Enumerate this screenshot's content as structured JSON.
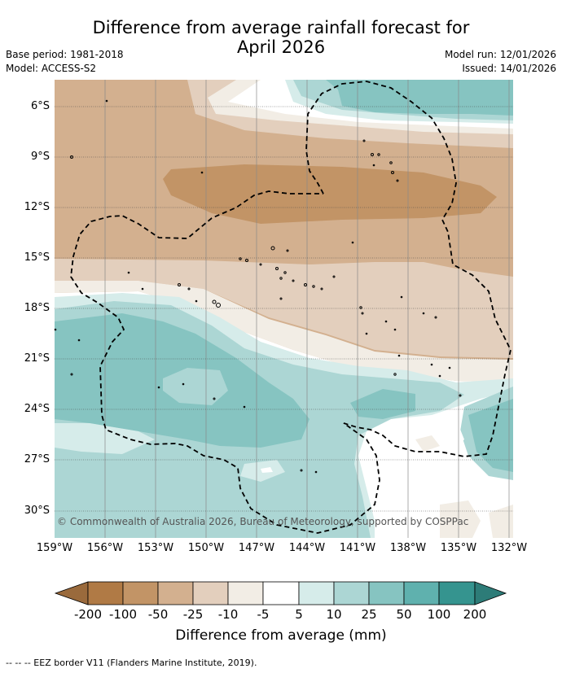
{
  "header": {
    "title_line1": "Difference from average rainfall forecast for",
    "title_line2": "April 2026",
    "base_period": "Base period: 1981-2018",
    "model": "Model: ACCESS-S2",
    "model_run": "Model run: 12/01/2026",
    "issued": "Issued: 14/01/2026"
  },
  "map": {
    "lat_labels": [
      "6°S",
      "9°S",
      "12°S",
      "15°S",
      "18°S",
      "21°S",
      "24°S",
      "27°S",
      "30°S"
    ],
    "lon_labels": [
      "159°W",
      "156°W",
      "153°W",
      "150°W",
      "147°W",
      "144°W",
      "141°W",
      "138°W",
      "135°W",
      "132°W"
    ],
    "copyright": "© Commonwealth of Australia 2026, Bureau of Meteorology, supported by COSPPac",
    "region": "French Polynesia EEZ"
  },
  "colorbar": {
    "tick_labels": [
      "-200",
      "-100",
      "-50",
      "-25",
      "-10",
      "-5",
      "5",
      "10",
      "25",
      "50",
      "100",
      "200"
    ],
    "colors": [
      "#b07a45",
      "#c29466",
      "#d3b08f",
      "#e3cfbd",
      "#f2ede5",
      "#ffffff",
      "#d6ecea",
      "#acd6d4",
      "#86c4c1",
      "#5fb1ae",
      "#35948f",
      "#2d7c78"
    ],
    "title": "Difference from average (mm)"
  },
  "footer": {
    "eez_note": "--  --  -- EEZ border V11 (Flanders Marine Institute, 2019)."
  }
}
